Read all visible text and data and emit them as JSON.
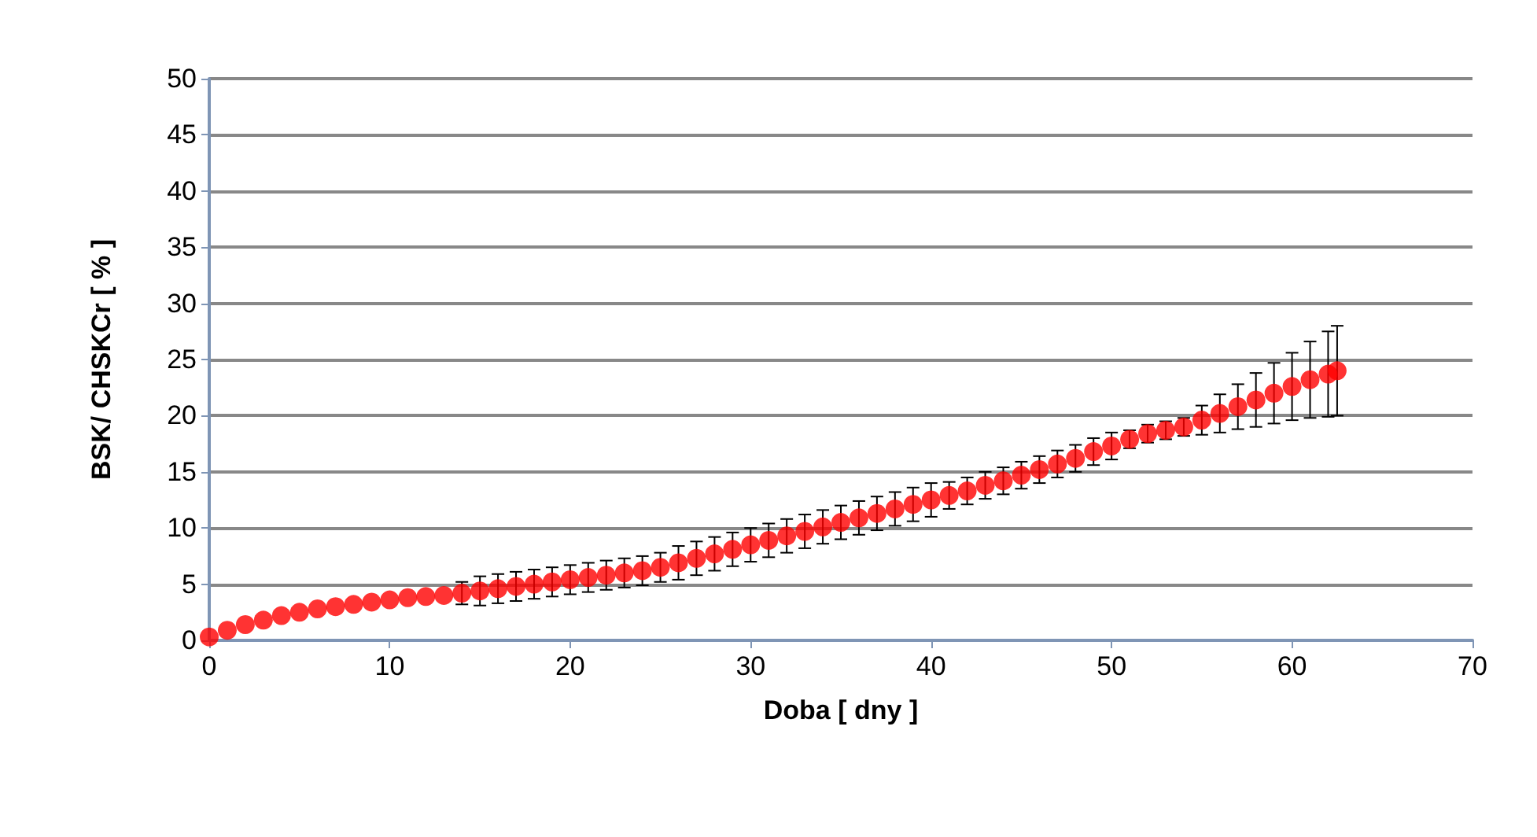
{
  "chart_data": {
    "type": "scatter",
    "xlabel": "Doba [ dny ]",
    "ylabel": "BSK/ CHSKCr [ % ]",
    "x": [
      0,
      1,
      2,
      3,
      4,
      5,
      6,
      7,
      8,
      9,
      10,
      11,
      12,
      13,
      14,
      15,
      16,
      17,
      18,
      19,
      20,
      21,
      22,
      23,
      24,
      25,
      26,
      27,
      28,
      29,
      30,
      31,
      32,
      33,
      34,
      35,
      36,
      37,
      38,
      39,
      40,
      41,
      42,
      43,
      44,
      45,
      46,
      47,
      48,
      49,
      50,
      51,
      52,
      53,
      54,
      55,
      56,
      57,
      58,
      59,
      60,
      61,
      62,
      62.5
    ],
    "series": [
      {
        "color": "#ff0000",
        "values": [
          0.3,
          0.9,
          1.4,
          1.8,
          2.2,
          2.5,
          2.8,
          3.0,
          3.2,
          3.4,
          3.6,
          3.8,
          3.9,
          4.0,
          4.2,
          4.4,
          4.6,
          4.8,
          5.0,
          5.2,
          5.4,
          5.6,
          5.8,
          6.0,
          6.2,
          6.5,
          6.9,
          7.3,
          7.7,
          8.1,
          8.5,
          8.9,
          9.3,
          9.7,
          10.1,
          10.5,
          10.9,
          11.3,
          11.7,
          12.1,
          12.5,
          12.9,
          13.3,
          13.8,
          14.2,
          14.7,
          15.2,
          15.7,
          16.2,
          16.8,
          17.3,
          17.9,
          18.4,
          18.7,
          19.0,
          19.6,
          20.2,
          20.8,
          21.4,
          22.0,
          22.6,
          23.2,
          23.7,
          24.0
        ],
        "errors": [
          null,
          null,
          null,
          null,
          null,
          null,
          null,
          null,
          null,
          null,
          null,
          null,
          null,
          null,
          1,
          1.3,
          1.3,
          1.3,
          1.3,
          1.3,
          1.3,
          1.3,
          1.3,
          1.3,
          1.3,
          1.3,
          1.5,
          1.5,
          1.5,
          1.5,
          1.5,
          1.5,
          1.5,
          1.5,
          1.5,
          1.5,
          1.5,
          1.5,
          1.5,
          1.5,
          1.5,
          1.2,
          1.2,
          1.2,
          1.2,
          1.2,
          1.2,
          1.2,
          1.2,
          1.2,
          1.2,
          0.8,
          0.8,
          0.8,
          0.8,
          1.3,
          1.7,
          2,
          2.4,
          2.7,
          3,
          3.4,
          3.8,
          4
        ]
      }
    ],
    "xlim": [
      0,
      70
    ],
    "xticks": [
      0,
      10,
      20,
      30,
      40,
      50,
      60,
      70
    ],
    "ylim": [
      0,
      50
    ],
    "yticks": [
      0,
      5,
      10,
      15,
      20,
      25,
      30,
      35,
      40,
      45,
      50
    ],
    "grid": "y",
    "marker": "circle"
  }
}
